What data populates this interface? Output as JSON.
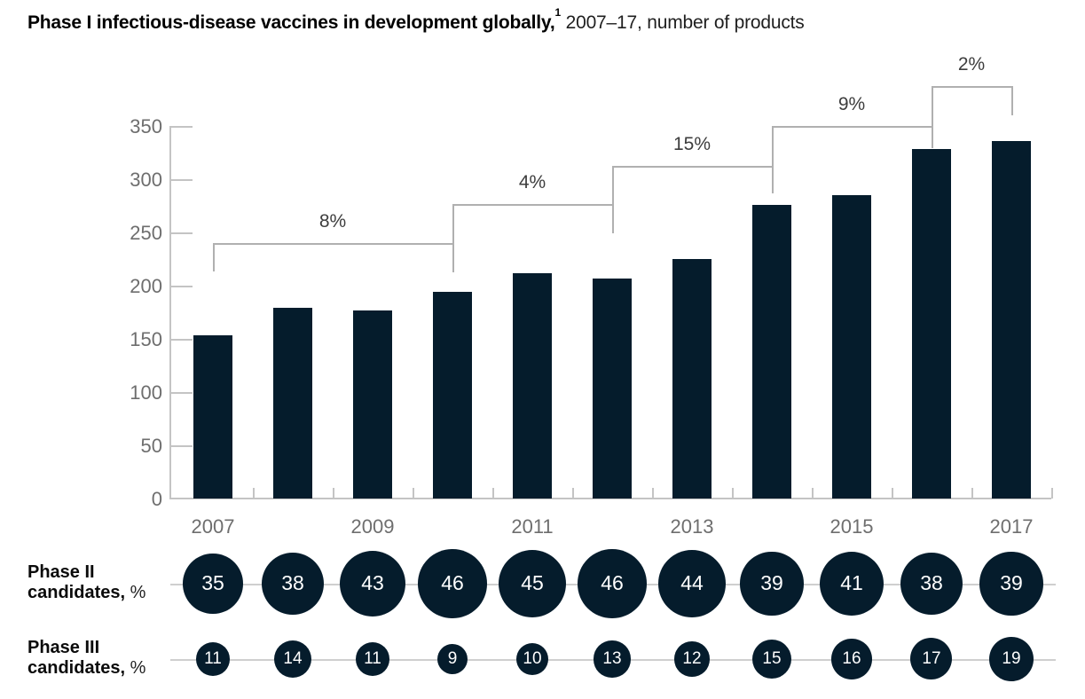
{
  "title": {
    "bold": "Phase I infectious-disease vaccines in development globally,",
    "superscript": "1",
    "regular": " 2007–17, number of products"
  },
  "colors": {
    "bar": "#051c2c",
    "axis_gray": "#c4c4c4",
    "bracket_gray": "#b0b0b0",
    "tick_text_gray": "#6e6e6e",
    "bracket_text": "#3d3d3d",
    "circle_fill": "#051c2c",
    "circle_text": "#ffffff",
    "row_line_gray": "#cfcfcf"
  },
  "chart_data": {
    "type": "bar",
    "title": "Phase I infectious-disease vaccines in development globally, 2007–17, number of products",
    "categories": [
      "2007",
      "2008",
      "2009",
      "2010",
      "2011",
      "2012",
      "2013",
      "2014",
      "2015",
      "2016",
      "2017"
    ],
    "values": [
      153,
      179,
      177,
      194,
      212,
      207,
      225,
      276,
      285,
      328,
      336
    ],
    "ylabel": "",
    "xlabel": "",
    "ylim": [
      0,
      350
    ],
    "yticks": [
      0,
      50,
      100,
      150,
      200,
      250,
      300,
      350
    ],
    "xtick_labels": [
      "2007",
      "2009",
      "2011",
      "2013",
      "2015",
      "2017"
    ],
    "grid": false,
    "legend": false,
    "growth_brackets": [
      {
        "label": "8%",
        "from": "2007",
        "to": "2010"
      },
      {
        "label": "4%",
        "from": "2010",
        "to": "2012"
      },
      {
        "label": "15%",
        "from": "2012",
        "to": "2014"
      },
      {
        "label": "9%",
        "from": "2014",
        "to": "2016"
      },
      {
        "label": "2%",
        "from": "2016",
        "to": "2017"
      }
    ],
    "sub_rows": [
      {
        "id": "phase2",
        "label_line1": "Phase II",
        "label_line2_bold": "candidates,",
        "label_line2_regular": " %",
        "values": [
          35,
          38,
          43,
          46,
          45,
          46,
          44,
          39,
          41,
          38,
          39
        ]
      },
      {
        "id": "phase3",
        "label_line1": "Phase III",
        "label_line2_bold": "candidates,",
        "label_line2_regular": " %",
        "values": [
          11,
          14,
          11,
          9,
          10,
          13,
          12,
          15,
          16,
          17,
          19
        ]
      }
    ]
  }
}
